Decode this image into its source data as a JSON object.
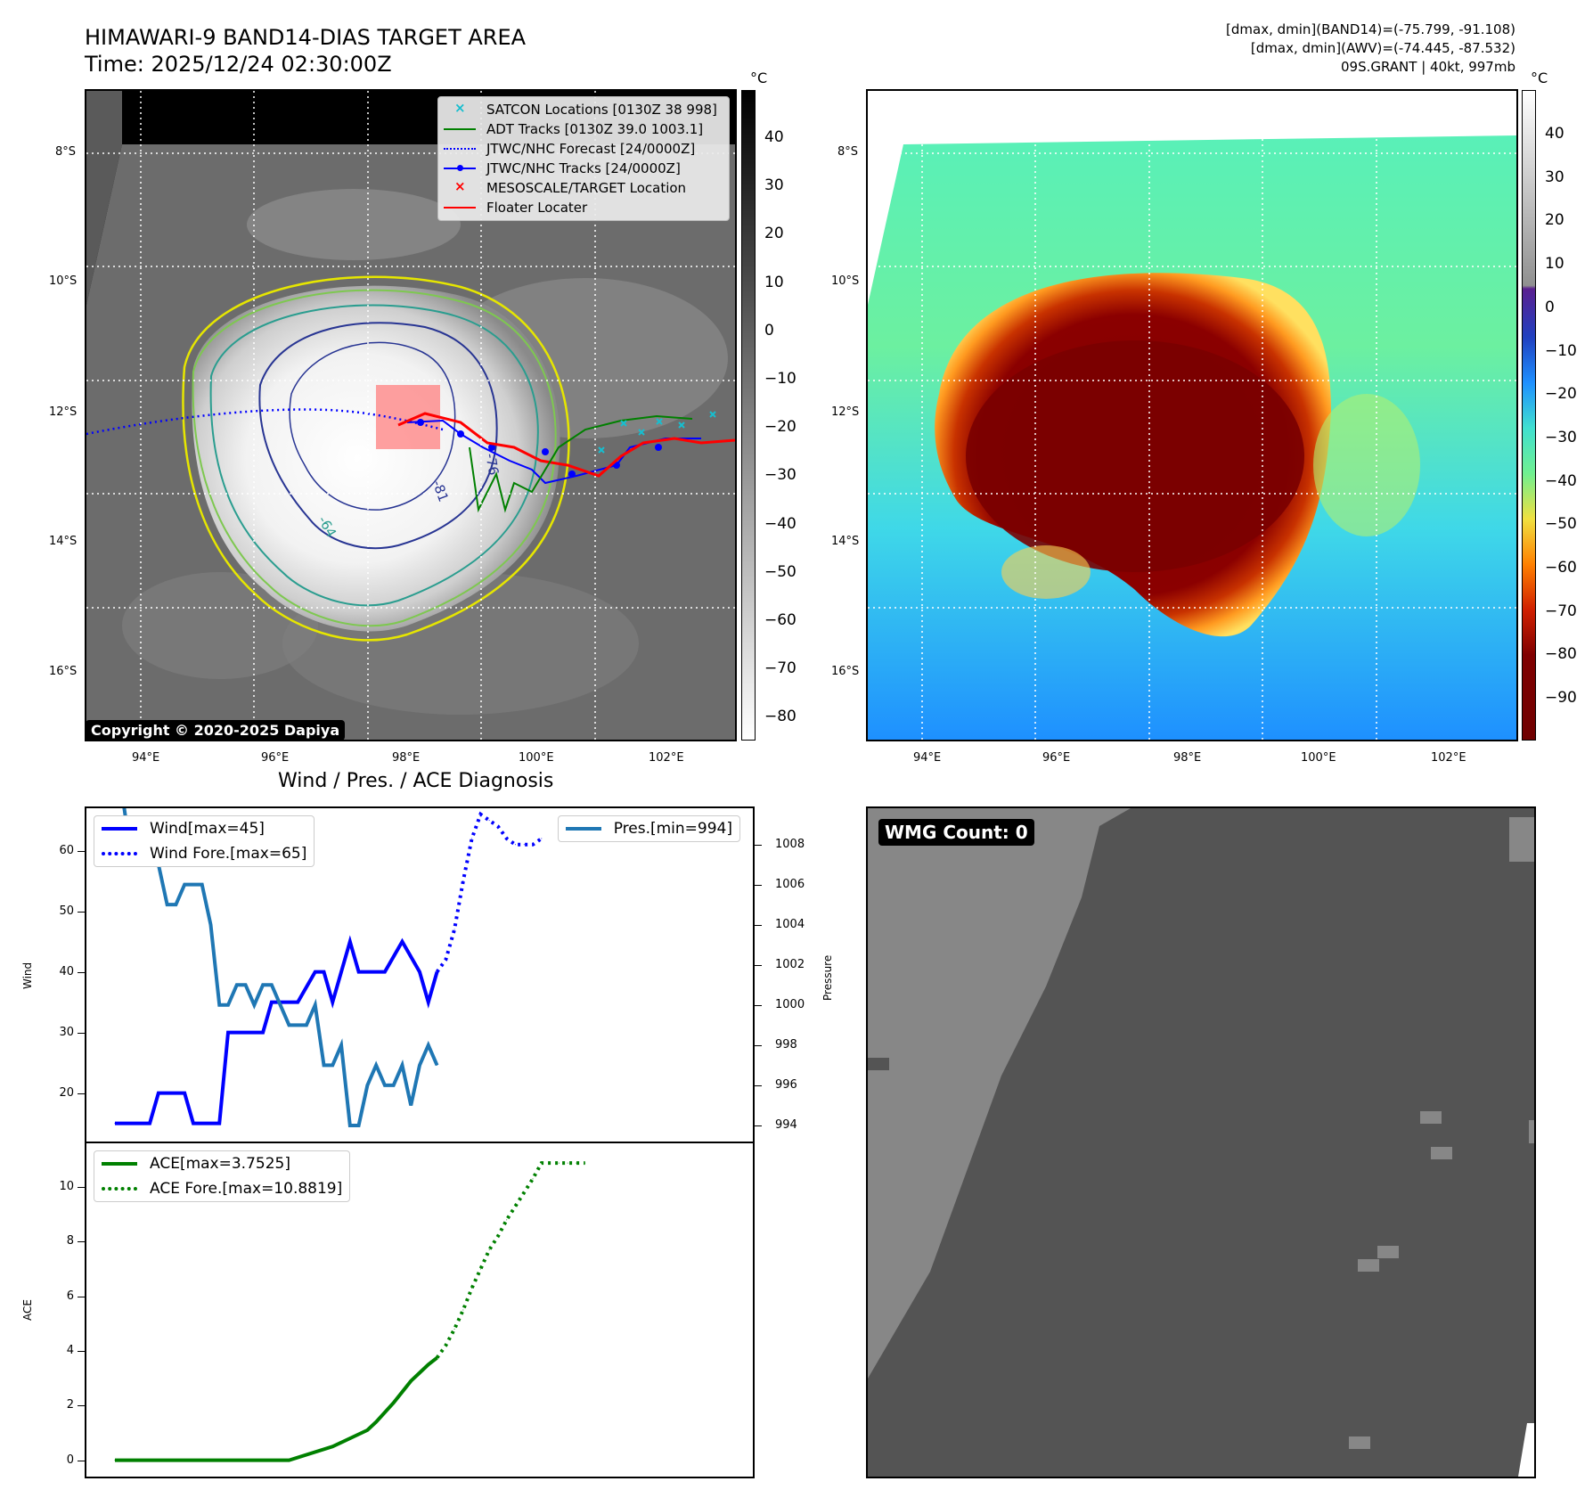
{
  "header": {
    "title_line1": "HIMAWARI-9 BAND14-DIAS TARGET AREA",
    "title_line2": "Time: 2025/12/24 02:30:00Z",
    "info_line1": "[dmax, dmin](BAND14)=(-75.799, -91.108)",
    "info_line2": "[dmax, dmin](AWV)=(-74.445, -87.532)",
    "info_line3": "09S.GRANT | 40kt, 997mb"
  },
  "map": {
    "lat_labels": [
      "8°S",
      "10°S",
      "12°S",
      "14°S",
      "16°S"
    ],
    "lon_labels": [
      "94°E",
      "96°E",
      "98°E",
      "100°E",
      "102°E"
    ],
    "copyright": "Copyright © 2020-2025 Dapiya",
    "contour_labels": [
      "-64",
      "-81",
      "-76"
    ],
    "legend": [
      {
        "label": "SATCON Locations [0130Z 38 998]",
        "color": "#17becf",
        "kind": "x"
      },
      {
        "label": "ADT Tracks [0130Z 39.0 1003.1]",
        "color": "#008000",
        "kind": "line"
      },
      {
        "label": "JTWC/NHC Forecast [24/0000Z]",
        "color": "#0000ff",
        "kind": "dotted"
      },
      {
        "label": "JTWC/NHC Tracks [24/0000Z]",
        "color": "#0000ff",
        "kind": "line-dot"
      },
      {
        "label": "MESOSCALE/TARGET Location",
        "color": "#ff0000",
        "kind": "x"
      },
      {
        "label": "Floater Locater",
        "color": "#ff0000",
        "kind": "line"
      }
    ]
  },
  "colorbar_gray": {
    "unit": "°C",
    "ticks": [
      "40",
      "30",
      "20",
      "10",
      "0",
      "−10",
      "−20",
      "−30",
      "−40",
      "−50",
      "−60",
      "−70",
      "−80"
    ]
  },
  "colorbar_color": {
    "unit": "°C",
    "ticks": [
      "40",
      "30",
      "20",
      "10",
      "0",
      "−10",
      "−20",
      "−30",
      "−40",
      "−50",
      "−60",
      "−70",
      "−80",
      "−90"
    ]
  },
  "chart_data": [
    {
      "type": "line",
      "title": "Wind / Pres. / ACE Diagnosis",
      "ylabel": "Wind",
      "ylabel_right": "Pressure",
      "ylim": [
        12,
        67
      ],
      "ylim_right": [
        993.2,
        1009.8
      ],
      "yticks": [
        20,
        30,
        40,
        50,
        60
      ],
      "yticks_right": [
        994,
        996,
        998,
        1000,
        1002,
        1004,
        1006,
        1008
      ],
      "legend_left": [
        "Wind[max=45]",
        "Wind Fore.[max=65]"
      ],
      "legend_right": [
        "Pres.[min=994]"
      ],
      "series": [
        {
          "name": "Wind",
          "color": "#0000ff",
          "style": "solid",
          "axis": "left",
          "x": [
            0,
            4,
            5,
            8,
            9,
            12,
            13,
            14,
            15,
            17,
            18,
            19,
            20,
            21,
            23,
            24,
            25,
            27,
            28,
            29,
            31,
            33,
            35,
            36,
            37
          ],
          "values": [
            15,
            15,
            20,
            20,
            15,
            15,
            30,
            30,
            30,
            30,
            35,
            35,
            35,
            35,
            40,
            40,
            35,
            45,
            40,
            40,
            40,
            45,
            40,
            35,
            40
          ]
        },
        {
          "name": "Wind Fore.",
          "color": "#0000ff",
          "style": "dotted",
          "axis": "left",
          "x": [
            37,
            38,
            39,
            40,
            41,
            42,
            43,
            44,
            45,
            46,
            47,
            48,
            49
          ],
          "values": [
            40,
            42,
            47,
            55,
            62,
            66,
            65,
            64,
            62,
            61,
            61,
            61,
            62
          ]
        },
        {
          "name": "Pres.",
          "color": "#1f77b4",
          "style": "solid",
          "axis": "right",
          "x": [
            0,
            1,
            2,
            3,
            4,
            5,
            6,
            7,
            8,
            9,
            10,
            11,
            12,
            13,
            14,
            15,
            16,
            17,
            18,
            19,
            20,
            21,
            22,
            23,
            24,
            25,
            26,
            27,
            28,
            29,
            30,
            31,
            32,
            33,
            34,
            35,
            36,
            37
          ],
          "values": [
            1010,
            1010,
            1007,
            1007,
            1007,
            1007,
            1005,
            1005,
            1006,
            1006,
            1006,
            1004,
            1000,
            1000,
            1001,
            1001,
            1000,
            1001,
            1001,
            1000,
            999,
            999,
            999,
            1000,
            997,
            997,
            998,
            994,
            994,
            996,
            997,
            996,
            996,
            997,
            995,
            997,
            998,
            997
          ]
        }
      ]
    },
    {
      "type": "line",
      "ylabel": "ACE",
      "ylim": [
        -0.6,
        11.6
      ],
      "yticks": [
        0,
        2,
        4,
        6,
        8,
        10
      ],
      "legend": [
        "ACE[max=3.7525]",
        "ACE Fore.[max=10.8819]"
      ],
      "series": [
        {
          "name": "ACE",
          "color": "#008000",
          "style": "solid",
          "x": [
            0,
            5,
            10,
            15,
            20,
            25,
            29,
            30,
            32,
            33,
            34,
            35,
            36,
            37
          ],
          "values": [
            0,
            0,
            0,
            0,
            0,
            0.5,
            1.1,
            1.4,
            2.1,
            2.5,
            2.9,
            3.2,
            3.5,
            3.75
          ]
        },
        {
          "name": "ACE Fore.",
          "color": "#008000",
          "style": "dotted",
          "x": [
            37,
            38,
            39,
            40,
            41,
            42,
            43,
            44,
            45,
            46,
            47,
            48,
            49,
            50,
            51,
            52,
            53,
            54
          ],
          "values": [
            3.75,
            4.2,
            4.8,
            5.5,
            6.3,
            7.0,
            7.7,
            8.2,
            8.8,
            9.3,
            9.8,
            10.3,
            10.88,
            10.88,
            10.88,
            10.88,
            10.88,
            10.88
          ]
        }
      ]
    }
  ],
  "wmg": {
    "label": "WMG Count: 0"
  }
}
